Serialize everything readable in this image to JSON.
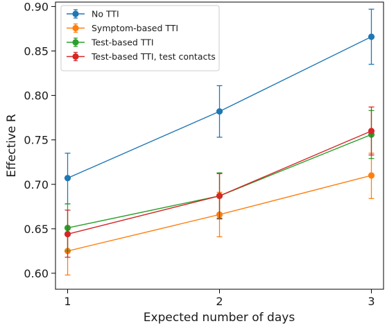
{
  "chart_data": {
    "type": "line",
    "title": "",
    "xlabel": "Expected number of days",
    "ylabel": "Effective R",
    "x": [
      1,
      2,
      3
    ],
    "xticks": [
      "1",
      "2",
      "3"
    ],
    "xlim": [
      0.92,
      3.08
    ],
    "yticks": [
      "0.60",
      "0.65",
      "0.70",
      "0.75",
      "0.80",
      "0.85",
      "0.90"
    ],
    "ylim": [
      0.582,
      0.905
    ],
    "grid": false,
    "legend_position": "top-left",
    "series": [
      {
        "name": "No TTI",
        "color": "#1f77b4",
        "values": [
          0.707,
          0.782,
          0.866
        ],
        "err_low": [
          0.678,
          0.753,
          0.835
        ],
        "err_high": [
          0.735,
          0.811,
          0.897
        ]
      },
      {
        "name": "Symptom-based TTI",
        "color": "#ff7f0e",
        "values": [
          0.625,
          0.666,
          0.71
        ],
        "err_low": [
          0.598,
          0.641,
          0.684
        ],
        "err_high": [
          0.652,
          0.691,
          0.735
        ]
      },
      {
        "name": "Test-based TTI",
        "color": "#2ca02c",
        "values": [
          0.651,
          0.687,
          0.756
        ],
        "err_low": [
          0.625,
          0.661,
          0.729
        ],
        "err_high": [
          0.678,
          0.713,
          0.783
        ]
      },
      {
        "name": "Test-based TTI, test contacts",
        "color": "#d62728",
        "values": [
          0.644,
          0.687,
          0.76
        ],
        "err_low": [
          0.618,
          0.662,
          0.733
        ],
        "err_high": [
          0.671,
          0.712,
          0.787
        ]
      }
    ]
  }
}
